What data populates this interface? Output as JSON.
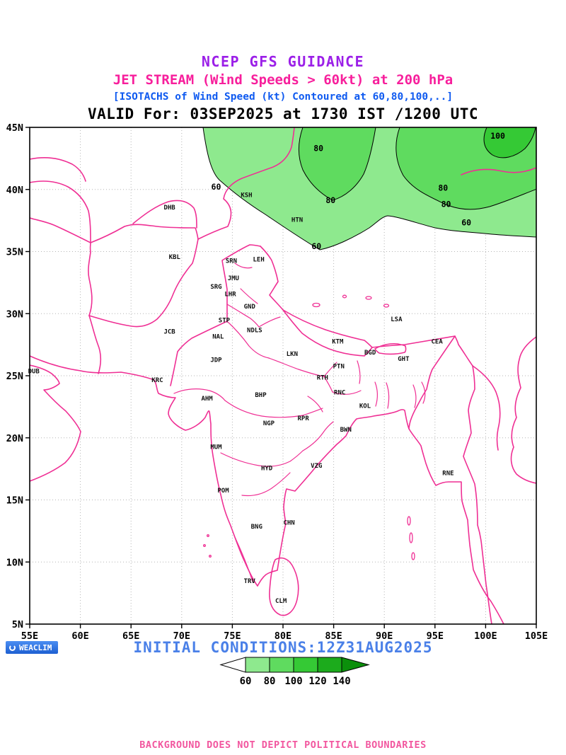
{
  "titles": {
    "guidance": "NCEP GFS GUIDANCE",
    "jetstream": "JET STREAM (Wind Speeds > 60kt) at 200 hPa",
    "isotachs": "[ISOTACHS of Wind Speed (kt) Contoured at 60,80,100,..]",
    "valid": "VALID For: 03SEP2025 at 1730 IST /1200 UTC"
  },
  "axes": {
    "lon_ticks": [
      "55E",
      "60E",
      "65E",
      "70E",
      "75E",
      "80E",
      "85E",
      "90E",
      "95E",
      "100E",
      "105E"
    ],
    "lon_values": [
      55,
      60,
      65,
      70,
      75,
      80,
      85,
      90,
      95,
      100,
      105
    ],
    "lat_ticks": [
      "45N",
      "40N",
      "35N",
      "30N",
      "25N",
      "20N",
      "15N",
      "10N",
      "5N"
    ],
    "lat_values": [
      45,
      40,
      35,
      30,
      25,
      20,
      15,
      10,
      5
    ]
  },
  "chart_data": {
    "type": "contour_map",
    "title": "NCEP GFS GUIDANCE",
    "subtitle": "JET STREAM (Wind Speeds > 60kt) at 200 hPa",
    "contour_note": "ISOTACHS of Wind Speed (kt) Contoured at 60,80,100,..",
    "valid_time": "03SEP2025 at 1730 IST /1200 UTC",
    "initialization": "12Z31AUG2025",
    "variable": "200 hPa wind speed (kt)",
    "contour_levels": [
      60,
      80,
      100,
      120,
      140
    ],
    "lon_range": [
      55,
      105
    ],
    "lat_range": [
      5,
      45
    ],
    "legend": {
      "tick_labels": [
        "60",
        "80",
        "100",
        "120",
        "140"
      ],
      "colors": [
        "#ffffff",
        "#8ee98e",
        "#5fdb5f",
        "#35c935",
        "#1cab1c",
        "#0b8f0b"
      ]
    },
    "shaded_feature": "Jet stream shading (wind > 60 kt) covers the northern part of the domain (roughly 35N-45N, 72E-105E) with embedded 80 kt maxima and a 100 kt core near the northeast corner"
  },
  "map": {
    "stations": [
      {
        "code": "DHB",
        "lon": 68.8,
        "lat": 38.4
      },
      {
        "code": "KSH",
        "lon": 76.4,
        "lat": 39.4
      },
      {
        "code": "HTN",
        "lon": 81.4,
        "lat": 37.4
      },
      {
        "code": "KBL",
        "lon": 69.3,
        "lat": 34.4
      },
      {
        "code": "SRN",
        "lon": 74.9,
        "lat": 34.1
      },
      {
        "code": "LEH",
        "lon": 77.6,
        "lat": 34.2
      },
      {
        "code": "JMU",
        "lon": 75.1,
        "lat": 32.7
      },
      {
        "code": "SRG",
        "lon": 73.4,
        "lat": 32.0
      },
      {
        "code": "LHR",
        "lon": 74.8,
        "lat": 31.4
      },
      {
        "code": "GND",
        "lon": 76.7,
        "lat": 30.4
      },
      {
        "code": "STP",
        "lon": 74.2,
        "lat": 29.3
      },
      {
        "code": "NDLS",
        "lon": 77.2,
        "lat": 28.5
      },
      {
        "code": "JCB",
        "lon": 68.8,
        "lat": 28.4
      },
      {
        "code": "NAL",
        "lon": 73.6,
        "lat": 28.0
      },
      {
        "code": "KTM",
        "lon": 85.4,
        "lat": 27.6
      },
      {
        "code": "LSA",
        "lon": 91.2,
        "lat": 29.4
      },
      {
        "code": "CEA",
        "lon": 95.2,
        "lat": 27.6
      },
      {
        "code": "BGD",
        "lon": 88.6,
        "lat": 26.7
      },
      {
        "code": "GHT",
        "lon": 91.9,
        "lat": 26.2
      },
      {
        "code": "JDP",
        "lon": 73.4,
        "lat": 26.1
      },
      {
        "code": "LKN",
        "lon": 80.9,
        "lat": 26.6
      },
      {
        "code": "PTN",
        "lon": 85.5,
        "lat": 25.6
      },
      {
        "code": "RTH",
        "lon": 83.9,
        "lat": 24.7
      },
      {
        "code": "KRC",
        "lon": 67.6,
        "lat": 24.5
      },
      {
        "code": "DUB",
        "lon": 55.4,
        "lat": 25.2
      },
      {
        "code": "AHM",
        "lon": 72.5,
        "lat": 23.0
      },
      {
        "code": "BHP",
        "lon": 77.8,
        "lat": 23.3
      },
      {
        "code": "RNC",
        "lon": 85.6,
        "lat": 23.5
      },
      {
        "code": "KOL",
        "lon": 88.1,
        "lat": 22.4
      },
      {
        "code": "NGP",
        "lon": 78.6,
        "lat": 21.0
      },
      {
        "code": "RPR",
        "lon": 82.0,
        "lat": 21.4
      },
      {
        "code": "BWN",
        "lon": 86.2,
        "lat": 20.5
      },
      {
        "code": "MUM",
        "lon": 73.4,
        "lat": 19.1
      },
      {
        "code": "HYD",
        "lon": 78.4,
        "lat": 17.4
      },
      {
        "code": "VZG",
        "lon": 83.3,
        "lat": 17.6
      },
      {
        "code": "RNE",
        "lon": 96.3,
        "lat": 17.0
      },
      {
        "code": "POM",
        "lon": 74.1,
        "lat": 15.6
      },
      {
        "code": "BNG",
        "lon": 77.4,
        "lat": 12.7
      },
      {
        "code": "CHN",
        "lon": 80.6,
        "lat": 13.0
      },
      {
        "code": "TRV",
        "lon": 76.7,
        "lat": 8.3
      },
      {
        "code": "CLM",
        "lon": 79.8,
        "lat": 6.7
      }
    ],
    "contour_labels": [
      {
        "text": "100",
        "lon": 101.2,
        "lat": 44.1
      },
      {
        "text": "80",
        "lon": 83.5,
        "lat": 43.1
      },
      {
        "text": "60",
        "lon": 73.4,
        "lat": 40.0
      },
      {
        "text": "80",
        "lon": 84.7,
        "lat": 38.9
      },
      {
        "text": "80",
        "lon": 95.8,
        "lat": 39.9
      },
      {
        "text": "80",
        "lon": 96.1,
        "lat": 38.6
      },
      {
        "text": "60",
        "lon": 98.1,
        "lat": 37.1
      },
      {
        "text": "60",
        "lon": 83.3,
        "lat": 35.2
      }
    ]
  },
  "footer": {
    "logo_text": "WEACLIM",
    "initial_conditions_line": "INITIAL CONDITIONS:12Z31AUG2025",
    "disclaimer": "BACKGROUND DOES NOT DEPICT POLITICAL BOUNDARIES"
  },
  "colors": {
    "title_guidance": "#9b1fe8",
    "title_jetstream": "#f71f9c",
    "title_isotachs": "#0f5af0",
    "valid_text": "#000000",
    "boundary_pink": "#ef2f94",
    "initial_conditions_blue": "#4a80e8",
    "disclaimer_pink": "#f2579f",
    "shade_60": "#8ee98e",
    "shade_80": "#5fdb5f",
    "shade_100": "#35c935"
  }
}
